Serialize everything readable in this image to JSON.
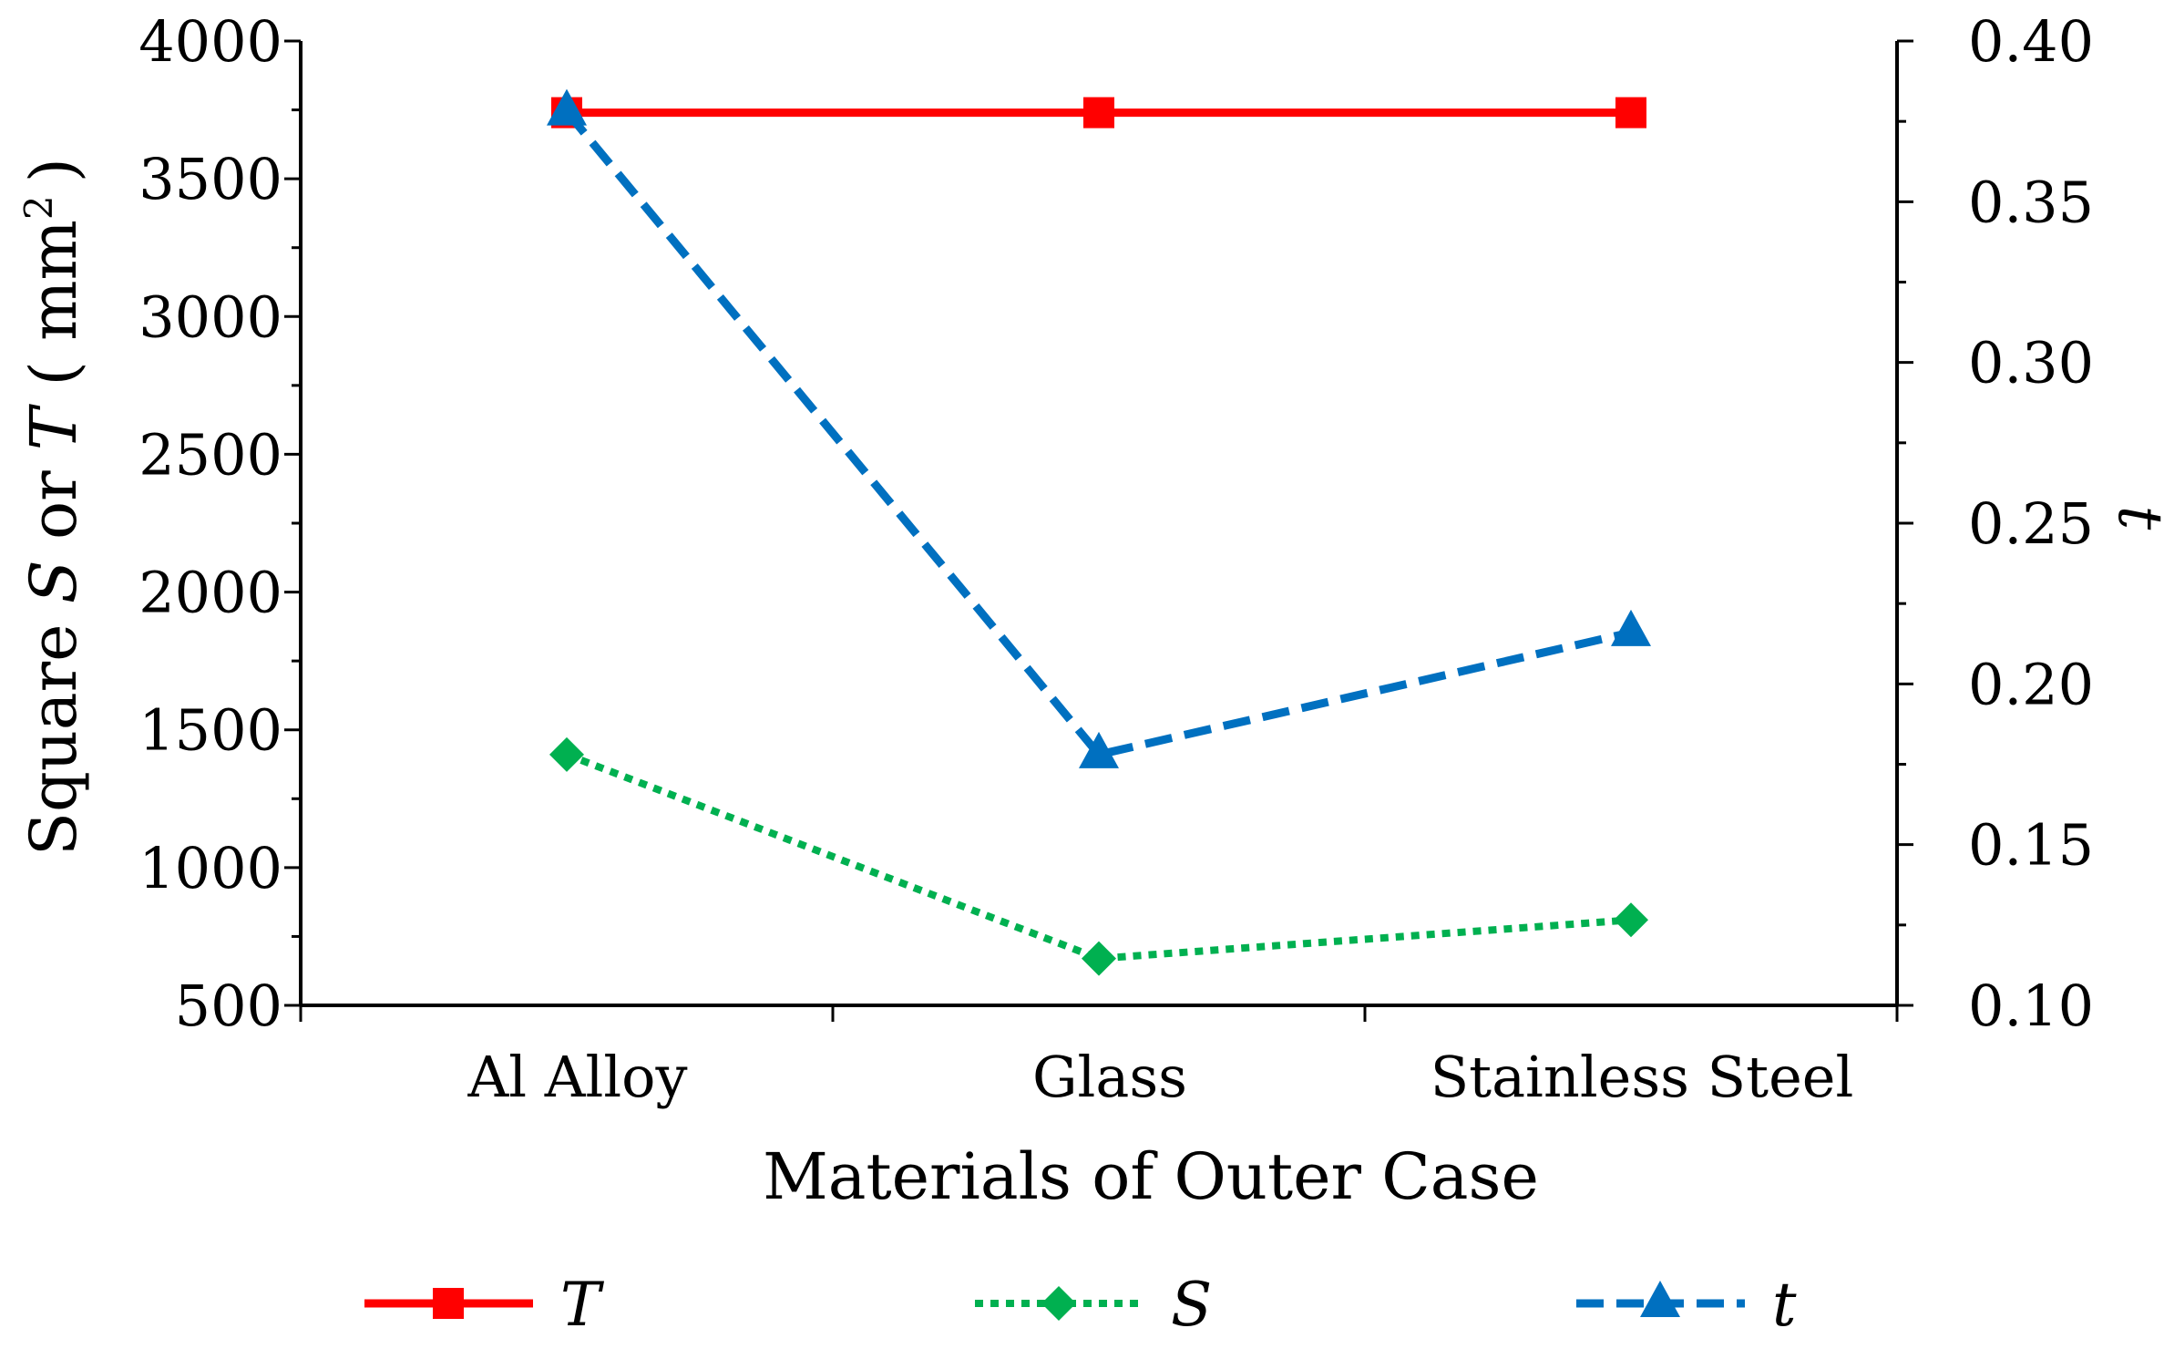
{
  "chart_data": {
    "type": "line",
    "title": "",
    "xlabel": "Materials of Outer Case",
    "ylabel": {
      "prefix": "Square ",
      "s": "S",
      "mid": " or ",
      "t": "T",
      "unit_open": "( mm",
      "unit_sup": "2",
      "unit_close": ")"
    },
    "y2label": "t",
    "categories": [
      "Al Alloy",
      "Glass",
      "Stainless Steel"
    ],
    "ylim": [
      500,
      4000
    ],
    "y_ticks": [
      500,
      1000,
      1500,
      2000,
      2500,
      3000,
      3500,
      4000
    ],
    "y_tick_labels": [
      "500",
      "1000",
      "1500",
      "2000",
      "2500",
      "3000",
      "3500",
      "4000"
    ],
    "y2lim": [
      0.1,
      0.4
    ],
    "y2_ticks": [
      0.1,
      0.15,
      0.2,
      0.25,
      0.3,
      0.35,
      0.4
    ],
    "y2_tick_labels": [
      "0.10",
      "0.15",
      "0.20",
      "0.25",
      "0.30",
      "0.35",
      "0.40"
    ],
    "grid": false,
    "legend_position": "bottom",
    "series": [
      {
        "name": "T",
        "axis": "left",
        "values": [
          3740,
          3740,
          3740
        ],
        "color": "#ff0000",
        "dash": "solid",
        "marker": "square"
      },
      {
        "name": "S",
        "axis": "left",
        "values": [
          1410,
          670,
          810
        ],
        "color": "#00b050",
        "dash": "dotted",
        "marker": "diamond"
      },
      {
        "name": "t",
        "axis": "right",
        "values": [
          0.378,
          0.178,
          0.216
        ],
        "color": "#0070c0",
        "dash": "dashed",
        "marker": "triangle"
      }
    ]
  }
}
